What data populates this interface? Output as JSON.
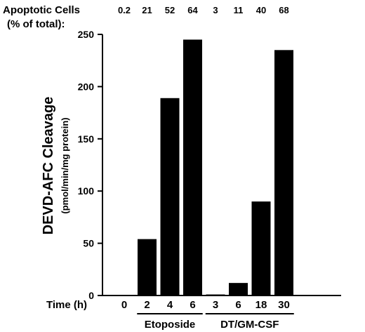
{
  "chart_data": {
    "type": "bar",
    "ylabel": "DEVD-AFC Cleavage",
    "ylabel_sub": "(pmol/min/mg protein)",
    "ylim": [
      0,
      250
    ],
    "yticks": [
      0,
      50,
      100,
      150,
      200,
      250
    ],
    "xlabel": "Time (h)",
    "categories": [
      "0",
      "2",
      "4",
      "6",
      "3",
      "6",
      "18",
      "30"
    ],
    "values": [
      0,
      54,
      189,
      245,
      1,
      12,
      90,
      235
    ],
    "top_annotation_title_line1": "Apoptotic Cells",
    "top_annotation_title_line2": "(% of total):",
    "apoptotic_cells": [
      "0.2",
      "21",
      "52",
      "64",
      "3",
      "11",
      "40",
      "68"
    ],
    "groups": [
      {
        "label": "Etoposide",
        "first": 1,
        "last": 3
      },
      {
        "label": "DT/GM-CSF",
        "first": 4,
        "last": 7
      }
    ],
    "bar_color": "#000000",
    "grid": false
  }
}
